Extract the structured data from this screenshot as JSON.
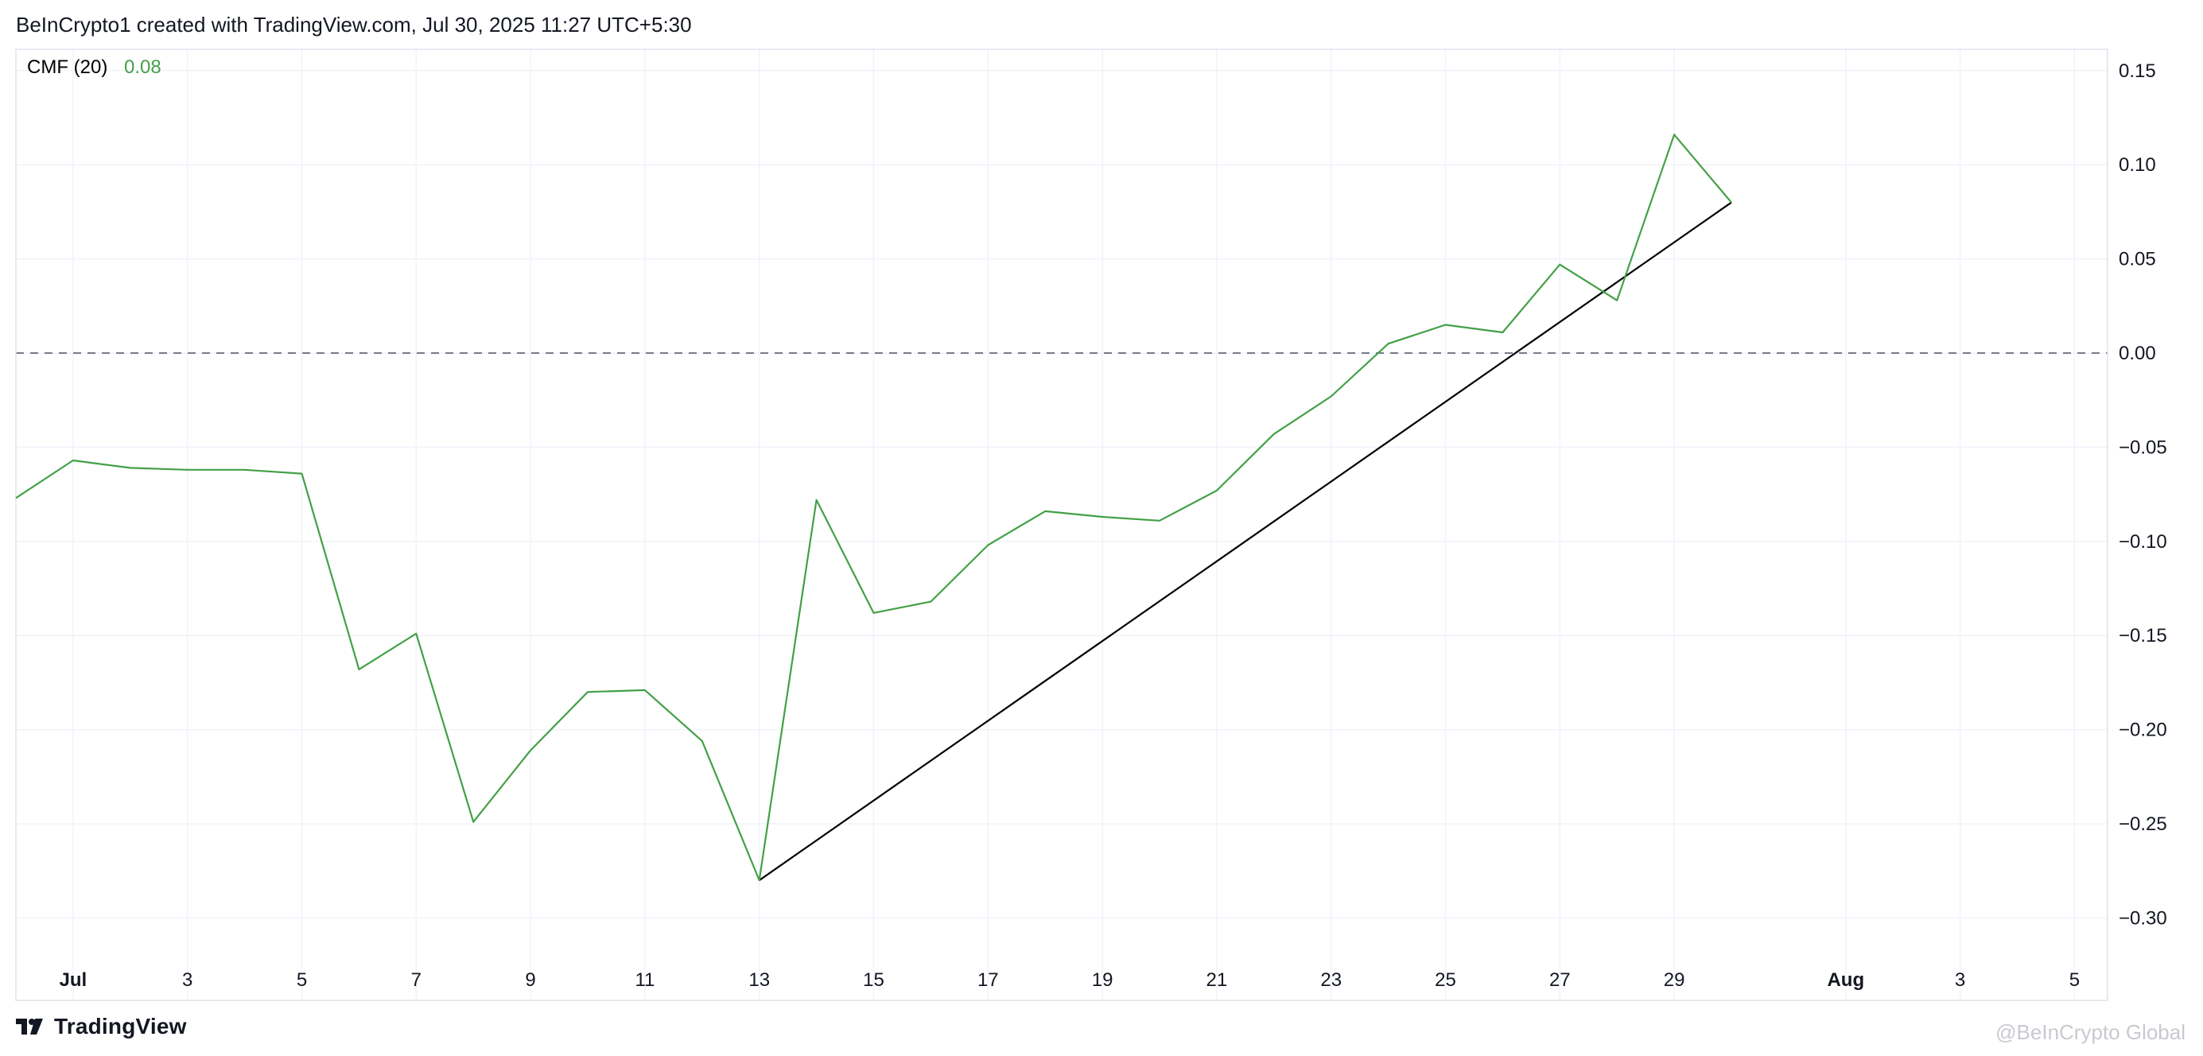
{
  "header": {
    "text": "BeInCrypto1 created with TradingView.com, Jul 30, 2025 11:27 UTC+5:30"
  },
  "indicator": {
    "name": "CMF (20)",
    "value": "0.08",
    "value_color": "#43a047"
  },
  "footer": {
    "brand": "TradingView",
    "logo_icon": "tradingview-logo-icon"
  },
  "watermark": {
    "text": "@BeInCrypto Global"
  },
  "colors": {
    "series": "#43a047",
    "trendline": "#000000",
    "zero_line": "#787b86",
    "grid": "#f0f3fa",
    "border": "#e0e3eb"
  },
  "chart_data": {
    "type": "line",
    "title": "",
    "xlabel": "",
    "ylabel": "",
    "ylim": [
      -0.325,
      0.165
    ],
    "x_tick_labels": [
      "Jul",
      "3",
      "5",
      "7",
      "9",
      "11",
      "13",
      "15",
      "17",
      "19",
      "21",
      "23",
      "25",
      "27",
      "29",
      "Aug",
      "3",
      "5"
    ],
    "y_tick_labels": [
      "0.15",
      "0.10",
      "0.05",
      "0.00",
      "−0.05",
      "−0.10",
      "−0.15",
      "−0.20",
      "−0.25",
      "−0.30"
    ],
    "grid": true,
    "series": [
      {
        "name": "CMF (20)",
        "x": [
          "Jun 30",
          "Jul 1",
          "Jul 2",
          "Jul 3",
          "Jul 4",
          "Jul 5",
          "Jul 6",
          "Jul 7",
          "Jul 8",
          "Jul 9",
          "Jul 10",
          "Jul 11",
          "Jul 12",
          "Jul 13",
          "Jul 14",
          "Jul 15",
          "Jul 16",
          "Jul 17",
          "Jul 18",
          "Jul 19",
          "Jul 20",
          "Jul 21",
          "Jul 22",
          "Jul 23",
          "Jul 24",
          "Jul 25",
          "Jul 26",
          "Jul 27",
          "Jul 28",
          "Jul 29",
          "Jul 30"
        ],
        "values": [
          -0.077,
          -0.057,
          -0.061,
          -0.062,
          -0.062,
          -0.064,
          -0.168,
          -0.149,
          -0.249,
          -0.211,
          -0.18,
          -0.179,
          -0.206,
          -0.28,
          -0.078,
          -0.138,
          -0.132,
          -0.102,
          -0.084,
          -0.087,
          -0.089,
          -0.073,
          -0.043,
          -0.023,
          0.005,
          0.015,
          0.011,
          0.047,
          0.028,
          0.116,
          0.08
        ]
      }
    ],
    "annotations": [
      {
        "type": "trendline",
        "from": {
          "x": "Jul 13",
          "y": -0.28
        },
        "to": {
          "x": "Jul 30",
          "y": 0.08
        }
      },
      {
        "type": "horizontal-dashed-line",
        "y": 0.0
      }
    ]
  }
}
